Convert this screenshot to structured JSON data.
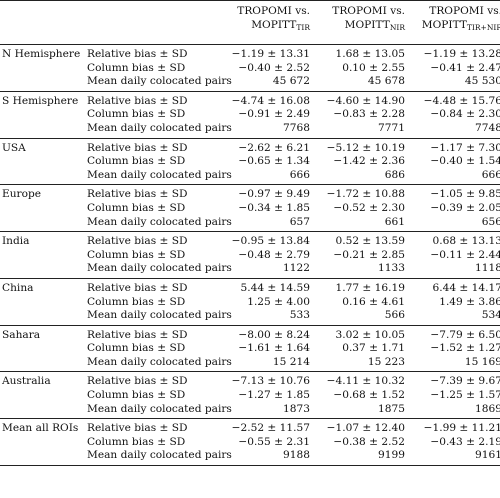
{
  "header": {
    "col1_line1": "TROPOMI vs.",
    "col1_line2": "MOPITT",
    "col1_sub": "TIR",
    "col2_line1": "TROPOMI vs.",
    "col2_line2": "MOPITT",
    "col2_sub": "NIR",
    "col3_line1": "TROPOMI vs.",
    "col3_line2": "MOPITT",
    "col3_sub": "TIR+NIR"
  },
  "metrics": [
    "Relative bias ± SD",
    "Column bias ± SD",
    "Mean daily colocated pairs"
  ],
  "groups": [
    {
      "region": "N Hemisphere",
      "rows": [
        [
          "−1.19 ± 13.31",
          "1.68 ± 13.05",
          "−1.19 ± 13.28"
        ],
        [
          "−0.40 ± 2.52",
          "0.10 ± 2.55",
          "−0.41 ± 2.47"
        ],
        [
          "45 672",
          "45 678",
          "45 530"
        ]
      ]
    },
    {
      "region": "S Hemisphere",
      "rows": [
        [
          "−4.74 ± 16.08",
          "−4.60 ± 14.90",
          "−4.48 ± 15.76"
        ],
        [
          "−0.91 ± 2.49",
          "−0.83 ± 2.28",
          "−0.84 ± 2.30"
        ],
        [
          "7768",
          "7771",
          "7748"
        ]
      ]
    },
    {
      "region": "USA",
      "rows": [
        [
          "−2.62 ± 6.21",
          "−5.12 ± 10.19",
          "−1.17 ± 7.30"
        ],
        [
          "−0.65 ± 1.34",
          "−1.42 ± 2.36",
          "−0.40 ± 1.54"
        ],
        [
          "666",
          "686",
          "666"
        ]
      ]
    },
    {
      "region": "Europe",
      "rows": [
        [
          "−0.97 ± 9.49",
          "−1.72 ± 10.88",
          "−1.05 ± 9.85"
        ],
        [
          "−0.34 ± 1.85",
          "−0.52 ± 2.30",
          "−0.39 ± 2.05"
        ],
        [
          "657",
          "661",
          "656"
        ]
      ]
    },
    {
      "region": "India",
      "rows": [
        [
          "−0.95 ± 13.84",
          "0.52 ± 13.59",
          "0.68 ± 13.13"
        ],
        [
          "−0.48 ± 2.79",
          "−0.21 ± 2.85",
          "−0.11 ± 2.44"
        ],
        [
          "1122",
          "1133",
          "1118"
        ]
      ]
    },
    {
      "region": "China",
      "rows": [
        [
          "5.44 ± 14.59",
          "1.77 ± 16.19",
          "6.44 ± 14.17"
        ],
        [
          "1.25 ± 4.00",
          "0.16 ± 4.61",
          "1.49 ± 3.86"
        ],
        [
          "533",
          "566",
          "534"
        ]
      ]
    },
    {
      "region": "Sahara",
      "rows": [
        [
          "−8.00 ± 8.24",
          "3.02 ± 10.05",
          "−7.79 ± 6.50"
        ],
        [
          "−1.61 ± 1.64",
          "0.37 ± 1.71",
          "−1.52 ± 1.27"
        ],
        [
          "15 214",
          "15 223",
          "15 169"
        ]
      ]
    },
    {
      "region": "Australia",
      "rows": [
        [
          "−7.13 ± 10.76",
          "−4.11 ± 10.32",
          "−7.39 ± 9.67"
        ],
        [
          "−1.27 ± 1.85",
          "−0.68 ± 1.52",
          "−1.25 ± 1.57"
        ],
        [
          "1873",
          "1875",
          "1869"
        ]
      ]
    },
    {
      "region": "Mean all ROIs",
      "rows": [
        [
          "−2.52 ± 11.57",
          "−1.07 ± 12.40",
          "−1.99 ± 11.21"
        ],
        [
          "−0.55 ± 2.31",
          "−0.38 ± 2.52",
          "−0.43 ± 2.19"
        ],
        [
          "9188",
          "9199",
          "9161"
        ]
      ]
    }
  ]
}
